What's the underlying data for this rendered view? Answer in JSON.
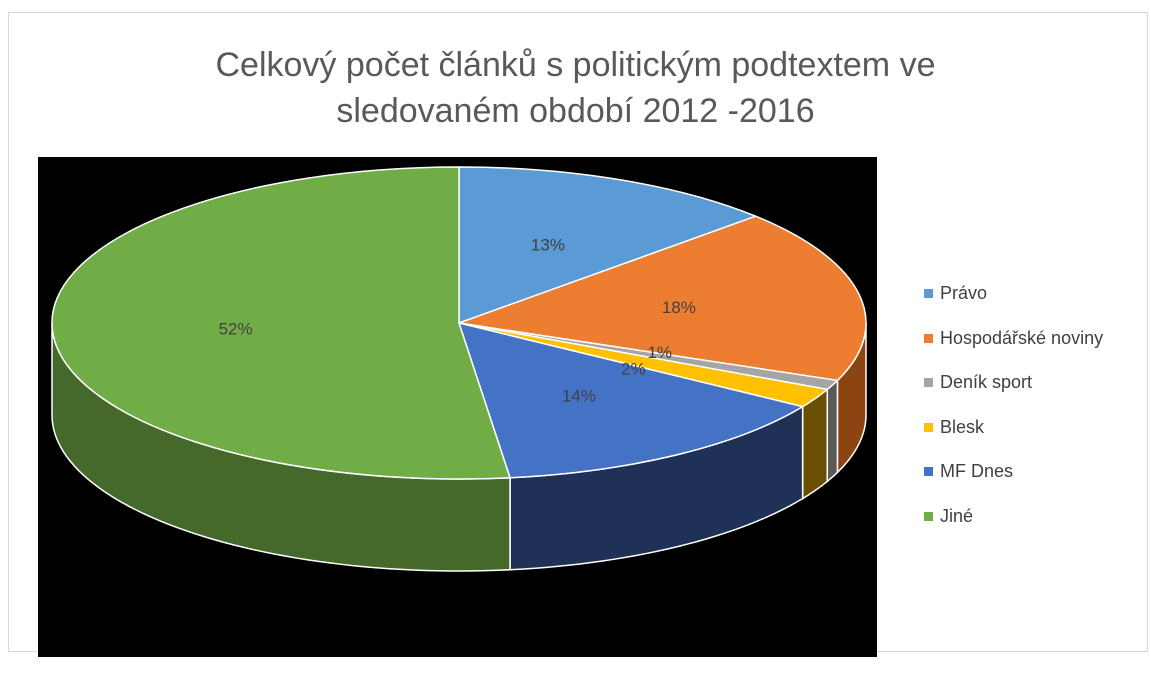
{
  "chart_data": {
    "type": "pie",
    "style": "3d-pie",
    "title_lines": [
      "Celkový počet článků s politickým podtextem ve",
      "sledovaném období 2012 -2016"
    ],
    "legend_position": "right",
    "slices": [
      {
        "name": "Právo",
        "value": 13,
        "label": "13%",
        "color": "#5b9bd5",
        "side_color": "#2e5a86"
      },
      {
        "name": "Hospodářské noviny",
        "value": 18,
        "label": "18%",
        "color": "#ed7d31",
        "side_color": "#8c4412"
      },
      {
        "name": "Deník sport",
        "value": 1,
        "label": "1%",
        "color": "#a5a5a5",
        "side_color": "#5a5a5a"
      },
      {
        "name": "Blesk",
        "value": 2,
        "label": "2%",
        "color": "#ffc000",
        "side_color": "#6b4f00"
      },
      {
        "name": "MF Dnes",
        "value": 14,
        "label": "14%",
        "color": "#4472c4",
        "side_color": "#1f3156"
      },
      {
        "name": "Jiné",
        "value": 52,
        "label": "52%",
        "color": "#70ad47",
        "side_color": "#44692b"
      }
    ]
  }
}
